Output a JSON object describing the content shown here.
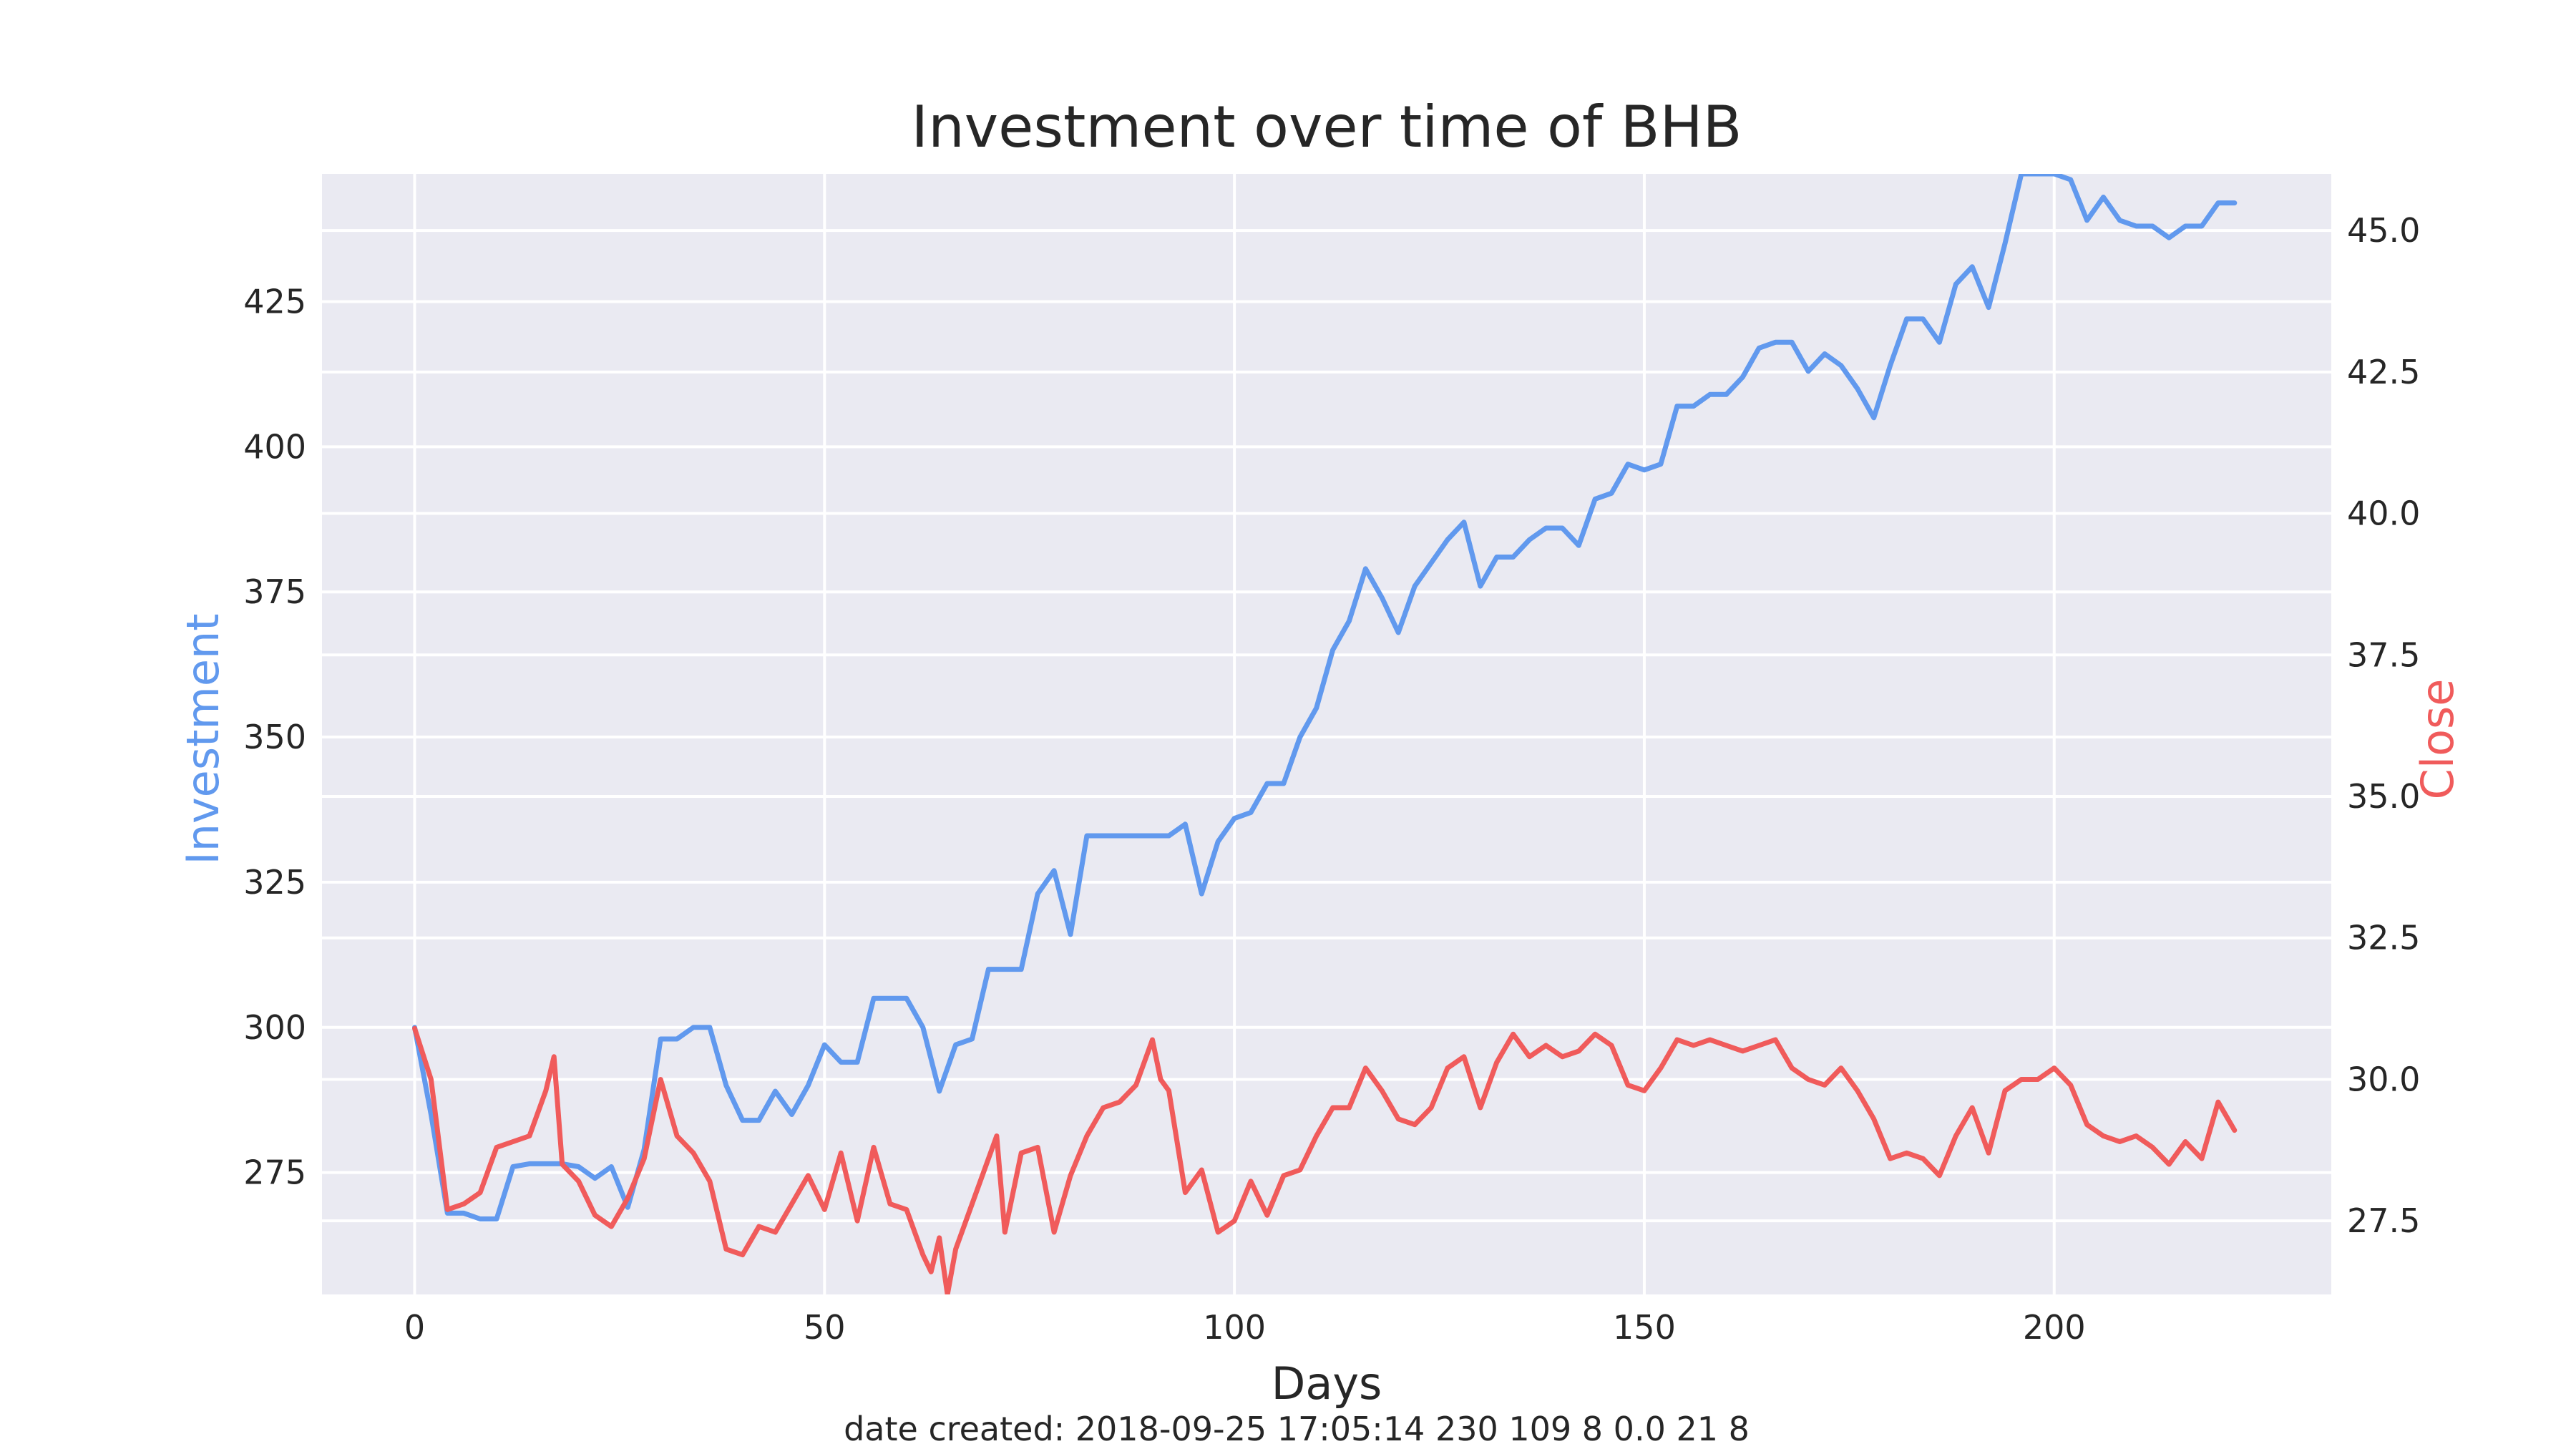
{
  "chart_data": {
    "type": "line",
    "title": "Investment over time of BHB",
    "xlabel": "Days",
    "ylabel_left": "Investment",
    "ylabel_right": "Close",
    "footer": "date created: 2018-09-25 17:05:14 230 109 8 0.0 21 8",
    "xlim": [
      -11.3,
      233.8
    ],
    "ylim_left": [
      254,
      447
    ],
    "ylim_right": [
      26.2,
      46.0
    ],
    "xticks": [
      0,
      50,
      100,
      150,
      200
    ],
    "xtick_labels": [
      "0",
      "50",
      "100",
      "150",
      "200"
    ],
    "yticks_left": [
      275,
      300,
      325,
      350,
      375,
      400,
      425
    ],
    "ytick_labels_left": [
      "275",
      "300",
      "325",
      "350",
      "375",
      "400",
      "425"
    ],
    "yticks_right": [
      27.5,
      30.0,
      32.5,
      35.0,
      37.5,
      40.0,
      42.5,
      45.0
    ],
    "ytick_labels_right": [
      "27.5",
      "30.0",
      "32.5",
      "35.0",
      "37.5",
      "40.0",
      "42.5",
      "45.0"
    ],
    "grid": true,
    "series": [
      {
        "name": "Investment",
        "axis": "left",
        "color": "#6199ee",
        "x": [
          0,
          2,
          4,
          6,
          8,
          10,
          12,
          14,
          16,
          18,
          20,
          22,
          24,
          26,
          28,
          30,
          32,
          34,
          36,
          38,
          40,
          42,
          44,
          46,
          48,
          50,
          52,
          54,
          56,
          58,
          60,
          62,
          64,
          66,
          68,
          70,
          72,
          74,
          76,
          78,
          80,
          82,
          84,
          86,
          88,
          90,
          92,
          94,
          96,
          98,
          100,
          102,
          104,
          106,
          108,
          110,
          112,
          114,
          116,
          118,
          120,
          122,
          124,
          126,
          128,
          130,
          132,
          134,
          136,
          138,
          140,
          142,
          144,
          146,
          148,
          150,
          152,
          154,
          156,
          158,
          160,
          162,
          164,
          166,
          168,
          170,
          172,
          174,
          176,
          178,
          180,
          182,
          184,
          186,
          188,
          190,
          192,
          194,
          196,
          198,
          200,
          202,
          204,
          206,
          208,
          210,
          212,
          214,
          216,
          218,
          220,
          222
        ],
        "values": [
          300,
          285,
          268,
          268,
          267,
          267,
          276,
          276.5,
          276.5,
          276.5,
          276,
          274,
          276,
          269,
          279,
          298,
          298,
          300,
          300,
          290,
          284,
          284,
          289,
          285,
          290,
          297,
          294,
          294,
          305,
          305,
          305,
          300,
          289,
          297,
          298,
          310,
          310,
          310,
          323,
          327,
          316,
          333,
          333,
          333,
          333,
          333,
          333,
          335,
          323,
          332,
          336,
          337,
          342,
          342,
          350,
          355,
          365,
          370,
          379,
          374,
          368,
          376,
          380,
          384,
          387,
          376,
          381,
          381,
          384,
          386,
          386,
          383,
          391,
          392,
          397,
          396,
          397,
          407,
          407,
          409,
          409,
          412,
          417,
          418,
          418,
          413,
          416,
          414,
          410,
          405,
          414,
          422,
          422,
          418,
          428,
          431,
          424,
          435,
          447,
          447,
          447,
          446,
          439,
          443,
          439,
          438,
          438,
          436,
          438,
          438,
          442,
          442
        ]
      },
      {
        "name": "Close",
        "axis": "right",
        "color": "#f05b5b",
        "x": [
          0,
          2,
          4,
          6,
          8,
          10,
          12,
          14,
          16,
          17,
          18,
          20,
          22,
          24,
          26,
          28,
          30,
          32,
          34,
          36,
          38,
          40,
          42,
          44,
          46,
          48,
          50,
          52,
          54,
          56,
          58,
          60,
          62,
          63,
          64,
          65,
          66,
          68,
          70,
          71,
          72,
          74,
          76,
          78,
          80,
          82,
          84,
          86,
          88,
          90,
          91,
          92,
          94,
          96,
          98,
          100,
          102,
          104,
          106,
          108,
          110,
          112,
          114,
          116,
          118,
          120,
          122,
          124,
          126,
          128,
          130,
          132,
          134,
          136,
          138,
          140,
          142,
          144,
          146,
          148,
          150,
          152,
          154,
          156,
          158,
          160,
          162,
          164,
          166,
          168,
          170,
          172,
          174,
          176,
          178,
          180,
          182,
          184,
          186,
          188,
          190,
          192,
          194,
          196,
          198,
          200,
          202,
          204,
          206,
          208,
          210,
          212,
          214,
          216,
          218,
          220,
          222
        ],
        "values": [
          30.9,
          30.0,
          27.7,
          27.8,
          28.0,
          28.8,
          28.9,
          29.0,
          29.8,
          30.4,
          28.5,
          28.2,
          27.6,
          27.4,
          27.9,
          28.6,
          30.0,
          29.0,
          28.7,
          28.2,
          27.0,
          26.9,
          27.4,
          27.3,
          27.8,
          28.3,
          27.7,
          28.7,
          27.5,
          28.8,
          27.8,
          27.7,
          26.9,
          26.6,
          27.2,
          26.2,
          27.0,
          27.8,
          28.6,
          29.0,
          27.3,
          28.7,
          28.8,
          27.3,
          28.3,
          29.0,
          29.5,
          29.6,
          29.9,
          30.7,
          30.0,
          29.8,
          28.0,
          28.4,
          27.3,
          27.5,
          28.2,
          27.6,
          28.3,
          28.4,
          29.0,
          29.5,
          29.5,
          30.2,
          29.8,
          29.3,
          29.2,
          29.5,
          30.2,
          30.4,
          29.5,
          30.3,
          30.8,
          30.4,
          30.6,
          30.4,
          30.5,
          30.8,
          30.6,
          29.9,
          29.8,
          30.2,
          30.7,
          30.6,
          30.7,
          30.6,
          30.5,
          30.6,
          30.7,
          30.2,
          30.0,
          29.9,
          30.2,
          29.8,
          29.3,
          28.6,
          28.7,
          28.6,
          28.3,
          29.0,
          29.5,
          28.7,
          29.8,
          30.0,
          30.0,
          30.2,
          29.9,
          29.2,
          29.0,
          28.9,
          29.0,
          28.8,
          28.5,
          28.9,
          28.6,
          29.6,
          29.1
        ]
      }
    ]
  }
}
